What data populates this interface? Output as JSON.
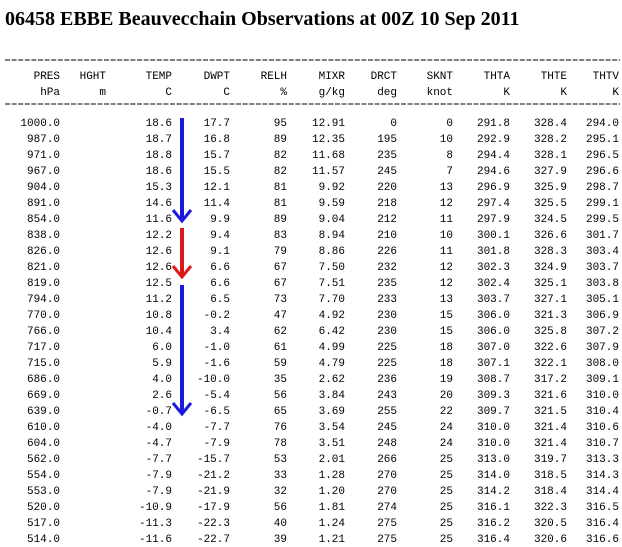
{
  "header": {
    "title": "06458 EBBE Beauvecchain Observations at 00Z 10 Sep 2011"
  },
  "table": {
    "columns": [
      "PRES",
      "HGHT",
      "TEMP",
      "DWPT",
      "RELH",
      "MIXR",
      "DRCT",
      "SKNT",
      "THTA",
      "THTE",
      "THTV"
    ],
    "units": [
      "hPa",
      "m",
      "C",
      "C",
      "%",
      "g/kg",
      "deg",
      "knot",
      "K",
      "K",
      "K"
    ],
    "row_columns": [
      "PRES",
      "TEMP",
      "DWPT",
      "RELH",
      "MIXR",
      "DRCT",
      "SKNT",
      "THTA",
      "THTE",
      "THTV"
    ],
    "rows": [
      [
        "1000.0",
        "18.6",
        "17.7",
        "95",
        "12.91",
        "0",
        "0",
        "291.8",
        "328.4",
        "294.0"
      ],
      [
        "987.0",
        "18.7",
        "16.8",
        "89",
        "12.35",
        "195",
        "10",
        "292.9",
        "328.2",
        "295.1"
      ],
      [
        "971.0",
        "18.8",
        "15.7",
        "82",
        "11.68",
        "235",
        "8",
        "294.4",
        "328.1",
        "296.5"
      ],
      [
        "967.0",
        "18.6",
        "15.5",
        "82",
        "11.57",
        "245",
        "7",
        "294.6",
        "327.9",
        "296.6"
      ],
      [
        "904.0",
        "15.3",
        "12.1",
        "81",
        "9.92",
        "220",
        "13",
        "296.9",
        "325.9",
        "298.7"
      ],
      [
        "891.0",
        "14.6",
        "11.4",
        "81",
        "9.59",
        "218",
        "12",
        "297.4",
        "325.5",
        "299.1"
      ],
      [
        "854.0",
        "11.6",
        "9.9",
        "89",
        "9.04",
        "212",
        "11",
        "297.9",
        "324.5",
        "299.5"
      ],
      [
        "838.0",
        "12.2",
        "9.4",
        "83",
        "8.94",
        "210",
        "10",
        "300.1",
        "326.6",
        "301.7"
      ],
      [
        "826.0",
        "12.6",
        "9.1",
        "79",
        "8.86",
        "226",
        "11",
        "301.8",
        "328.3",
        "303.4"
      ],
      [
        "821.0",
        "12.6",
        "6.6",
        "67",
        "7.50",
        "232",
        "12",
        "302.3",
        "324.9",
        "303.7"
      ],
      [
        "819.0",
        "12.5",
        "6.6",
        "67",
        "7.51",
        "235",
        "12",
        "302.4",
        "325.1",
        "303.8"
      ],
      [
        "794.0",
        "11.2",
        "6.5",
        "73",
        "7.70",
        "233",
        "13",
        "303.7",
        "327.1",
        "305.1"
      ],
      [
        "770.0",
        "10.8",
        "-0.2",
        "47",
        "4.92",
        "230",
        "15",
        "306.0",
        "321.3",
        "306.9"
      ],
      [
        "766.0",
        "10.4",
        "3.4",
        "62",
        "6.42",
        "230",
        "15",
        "306.0",
        "325.8",
        "307.2"
      ],
      [
        "717.0",
        "6.0",
        "-1.0",
        "61",
        "4.99",
        "225",
        "18",
        "307.0",
        "322.6",
        "307.9"
      ],
      [
        "715.0",
        "5.9",
        "-1.6",
        "59",
        "4.79",
        "225",
        "18",
        "307.1",
        "322.1",
        "308.0"
      ],
      [
        "686.0",
        "4.0",
        "-10.0",
        "35",
        "2.62",
        "236",
        "19",
        "308.7",
        "317.2",
        "309.1"
      ],
      [
        "669.0",
        "2.6",
        "-5.4",
        "56",
        "3.84",
        "243",
        "20",
        "309.3",
        "321.6",
        "310.0"
      ],
      [
        "639.0",
        "-0.7",
        "-6.5",
        "65",
        "3.69",
        "255",
        "22",
        "309.7",
        "321.5",
        "310.4"
      ],
      [
        "610.0",
        "-4.0",
        "-7.7",
        "76",
        "3.54",
        "245",
        "24",
        "310.0",
        "321.4",
        "310.6"
      ],
      [
        "604.0",
        "-4.7",
        "-7.9",
        "78",
        "3.51",
        "248",
        "24",
        "310.0",
        "321.4",
        "310.7"
      ],
      [
        "562.0",
        "-7.7",
        "-15.7",
        "53",
        "2.01",
        "266",
        "25",
        "313.0",
        "319.7",
        "313.3"
      ],
      [
        "554.0",
        "-7.9",
        "-21.2",
        "33",
        "1.28",
        "270",
        "25",
        "314.0",
        "318.5",
        "314.3"
      ],
      [
        "553.0",
        "-7.9",
        "-21.9",
        "32",
        "1.20",
        "270",
        "25",
        "314.2",
        "318.4",
        "314.4"
      ],
      [
        "520.0",
        "-10.9",
        "-17.9",
        "56",
        "1.81",
        "274",
        "25",
        "316.1",
        "322.3",
        "316.5"
      ],
      [
        "517.0",
        "-11.3",
        "-22.3",
        "40",
        "1.24",
        "275",
        "25",
        "316.2",
        "320.5",
        "316.4"
      ],
      [
        "514.0",
        "-11.6",
        "-22.7",
        "39",
        "1.21",
        "275",
        "25",
        "316.4",
        "320.6",
        "316.6"
      ]
    ]
  }
}
